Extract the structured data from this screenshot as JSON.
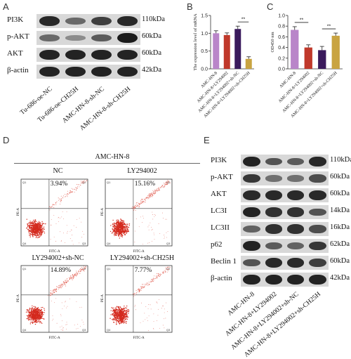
{
  "panels": {
    "A": "A",
    "B": "B",
    "C": "C",
    "D": "D",
    "E": "E"
  },
  "panel_a": {
    "rows": [
      {
        "label": "PI3K",
        "kda": "110kDa",
        "bands": [
          0.9,
          0.45,
          0.75,
          0.9
        ]
      },
      {
        "label": "p-AKT",
        "kda": "60kDa",
        "bands": [
          0.45,
          0.2,
          0.55,
          1.0
        ]
      },
      {
        "label": "AKT",
        "kda": "60kDa",
        "bands": [
          0.95,
          0.95,
          0.95,
          0.95
        ]
      },
      {
        "label": "β-actin",
        "kda": "42kDa",
        "bands": [
          0.95,
          0.95,
          0.95,
          0.95
        ]
      }
    ],
    "lanes": [
      "Tu-686-oe-NC",
      "Tu-686-oe-CH25H",
      "AMC-HN-8-sh-NC",
      "AMC-HN-8-sh-CH25H"
    ]
  },
  "chart_data": [
    {
      "type": "bar",
      "panel": "B",
      "ylabel": "The expression level of mRNA",
      "ylim": [
        0,
        1.5
      ],
      "yticks": [
        "0.0",
        "0.5",
        "1.0",
        "1.5"
      ],
      "categories": [
        "AMC-HN-8",
        "AMC-HN-8+LY294002",
        "AMC-HN-8+LY294002+sh-NC",
        "AMC-HN-8+LY294002+sh-CH25H"
      ],
      "values": [
        1.0,
        0.95,
        1.12,
        0.28
      ],
      "errors": [
        0.07,
        0.06,
        0.08,
        0.06
      ],
      "colors": [
        "#b985c9",
        "#c0392b",
        "#3a1a5c",
        "#c9a441"
      ],
      "significance": [
        {
          "from": 2,
          "to": 3,
          "label": "**"
        }
      ]
    },
    {
      "type": "bar",
      "panel": "C",
      "ylabel": "OD450 nm",
      "ylim": [
        0,
        1.0
      ],
      "yticks": [
        "0.0",
        "0.2",
        "0.4",
        "0.6",
        "0.8",
        "1.0"
      ],
      "categories": [
        "AMC-HN-8",
        "AMC-HN-8+LY294002",
        "AMC-HN-8+LY294002+sh-NC",
        "AMC-HN-8+LY294002+sh-CH25H"
      ],
      "values": [
        0.73,
        0.4,
        0.35,
        0.62
      ],
      "errors": [
        0.06,
        0.05,
        0.07,
        0.05
      ],
      "colors": [
        "#b985c9",
        "#c0392b",
        "#3a1a5c",
        "#c9a441"
      ],
      "significance": [
        {
          "from": 0,
          "to": 1,
          "label": "**"
        },
        {
          "from": 2,
          "to": 3,
          "label": "**"
        }
      ]
    }
  ],
  "panel_d": {
    "title": "AMC-HN-8",
    "plots": [
      {
        "caption": "NC",
        "percent": "3.94%"
      },
      {
        "caption": "LY294002",
        "percent": "15.16%"
      },
      {
        "caption": "LY294002+sh-NC",
        "percent": "14.89%"
      },
      {
        "caption": "LY294002+sh-CH25H",
        "percent": "7.77%"
      }
    ],
    "ylabel": "PE-A",
    "xlabel": "FITC-A",
    "quadrants": [
      "Q1",
      "Q2",
      "Q3",
      "Q4"
    ]
  },
  "panel_e": {
    "rows": [
      {
        "label": "PI3K",
        "kda": "110kDa",
        "bands": [
          0.95,
          0.6,
          0.55,
          0.9
        ]
      },
      {
        "label": "p-AKT",
        "kda": "60kDa",
        "bands": [
          0.8,
          0.4,
          0.4,
          0.65
        ]
      },
      {
        "label": "AKT",
        "kda": "60kDa",
        "bands": [
          0.9,
          0.9,
          0.9,
          0.9
        ]
      },
      {
        "label": "LC3I",
        "kda": "14kDa",
        "bands": [
          0.95,
          0.85,
          0.85,
          0.6
        ]
      },
      {
        "label": "LC3II",
        "kda": "16kDa",
        "bands": [
          0.5,
          0.85,
          0.85,
          0.65
        ]
      },
      {
        "label": "p62",
        "kda": "62kDa",
        "bands": [
          0.95,
          0.55,
          0.5,
          0.8
        ]
      },
      {
        "label": "Beclin 1",
        "kda": "60kDa",
        "bands": [
          0.6,
          0.9,
          0.9,
          0.75
        ]
      },
      {
        "label": "β-actin",
        "kda": "42kDa",
        "bands": [
          0.95,
          0.95,
          0.95,
          0.95
        ]
      }
    ],
    "lanes": [
      "AMC-HN-8",
      "AMC-HN-8+LY294002",
      "AMC-HN-8+LY294002+sh-NC",
      "AMC-HN-8+LY294002+sh-CH25H"
    ]
  }
}
